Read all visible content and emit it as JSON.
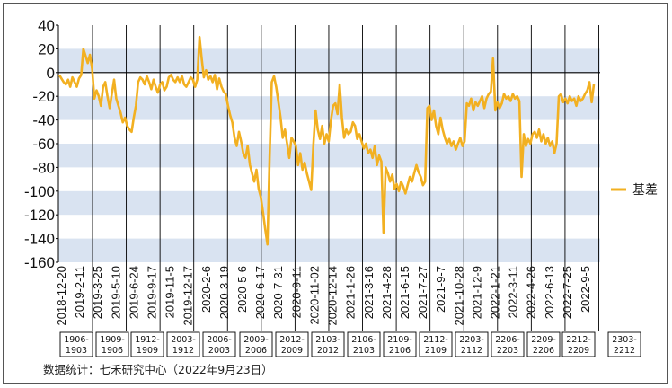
{
  "chart_data": {
    "type": "line",
    "title": "",
    "xlabel": "",
    "ylabel": "",
    "ylim": [
      -160,
      40
    ],
    "yticks": [
      40,
      20,
      0,
      -20,
      -40,
      -60,
      -80,
      -100,
      -120,
      -140,
      -160
    ],
    "grid": "horizontal bands",
    "legend_position": "right",
    "x_tick_labels": [
      "2018-12-20",
      "2019-2-11",
      "2019-3-25",
      "2019-5-10",
      "2019-6-24",
      "2019-9-17",
      "2019-11-5",
      "2019-12-17",
      "2020-2-6",
      "2020-3-19",
      "2020-5-6",
      "2020-6-17",
      "2020-7-31",
      "2020-9-11",
      "2020-11-02",
      "2020-12-14",
      "2021-1-26",
      "2021-3-16",
      "2021-4-28",
      "2021-6-15",
      "2021-7-27",
      "2021-9-7",
      "2021-10-28",
      "2021-12-9",
      "2022-1-21",
      "2022-3-11",
      "2022-4-26",
      "2022-6-13",
      "2022-7-25",
      "2022-9-5"
    ],
    "contracts": [
      {
        "line1": "1906-",
        "line2": "1903"
      },
      {
        "line1": "1909-",
        "line2": "1906"
      },
      {
        "line1": "1912-",
        "line2": "1909"
      },
      {
        "line1": "2003-",
        "line2": "1912"
      },
      {
        "line1": "2006-",
        "line2": "2003"
      },
      {
        "line1": "2009-",
        "line2": "2006"
      },
      {
        "line1": "2012-",
        "line2": "2009"
      },
      {
        "line1": "2103-",
        "line2": "2012"
      },
      {
        "line1": "2106-",
        "line2": "2103"
      },
      {
        "line1": "2109-",
        "line2": "2106"
      },
      {
        "line1": "2112-",
        "line2": "2109"
      },
      {
        "line1": "2203-",
        "line2": "2112"
      },
      {
        "line1": "2206-",
        "line2": "2203"
      },
      {
        "line1": "2209-",
        "line2": "2206"
      },
      {
        "line1": "2212-",
        "line2": "2209"
      },
      {
        "line1": "2303-",
        "line2": "2212"
      }
    ],
    "series": [
      {
        "name": "基差",
        "color": "#f2b021",
        "values": [
          -2,
          -5,
          -8,
          -10,
          -6,
          -12,
          -4,
          -8,
          -12,
          -5,
          -2,
          20,
          14,
          8,
          15,
          3,
          -22,
          -15,
          -20,
          -28,
          -12,
          -8,
          -20,
          -30,
          -18,
          -6,
          -22,
          -28,
          -34,
          -42,
          -38,
          -45,
          -48,
          -50,
          -38,
          -28,
          -8,
          -4,
          -6,
          -10,
          -3,
          -8,
          -14,
          -6,
          -12,
          -17,
          -10,
          -8,
          -15,
          -12,
          -4,
          -2,
          -6,
          -8,
          -4,
          -8,
          -3,
          -10,
          -12,
          -8,
          -4,
          -6,
          -12,
          -6,
          30,
          12,
          -4,
          2,
          -6,
          -3,
          -8,
          -2,
          -14,
          -5,
          -12,
          -16,
          -18,
          -28,
          -36,
          -42,
          -55,
          -62,
          -50,
          -58,
          -68,
          -72,
          -62,
          -78,
          -85,
          -92,
          -82,
          -98,
          -105,
          -118,
          -132,
          -145,
          -72,
          -8,
          -3,
          -12,
          -25,
          -38,
          -55,
          -48,
          -60,
          -72,
          -55,
          -58,
          -62,
          -78,
          -68,
          -82,
          -76,
          -85,
          -92,
          -99,
          -60,
          -32,
          -48,
          -56,
          -45,
          -60,
          -52,
          -58,
          -40,
          -28,
          -26,
          -35,
          -10,
          -38,
          -55,
          -48,
          -52,
          -50,
          -42,
          -45,
          -56,
          -52,
          -58,
          -64,
          -60,
          -68,
          -65,
          -72,
          -62,
          -78,
          -70,
          -75,
          -135,
          -80,
          -85,
          -92,
          -86,
          -98,
          -94,
          -100,
          -92,
          -96,
          -102,
          -95,
          -88,
          -92,
          -85,
          -78,
          -84,
          -88,
          -95,
          -92,
          -30,
          -28,
          -40,
          -32,
          -45,
          -52,
          -38,
          -48,
          -55,
          -60,
          -56,
          -62,
          -58,
          -65,
          -60,
          -55,
          -62,
          -58,
          -26,
          -28,
          -22,
          -32,
          -25,
          -28,
          -24,
          -20,
          -30,
          -22,
          -18,
          -16,
          12,
          -32,
          -25,
          -30,
          -26,
          -18,
          -22,
          -20,
          -24,
          -18,
          -22,
          -20,
          -24,
          -88,
          -52,
          -62,
          -56,
          -60,
          -52,
          -50,
          -55,
          -48,
          -58,
          -52,
          -60,
          -55,
          -62,
          -58,
          -68,
          -60,
          -20,
          -18,
          -25,
          -22,
          -26,
          -20,
          -24,
          -22,
          -28,
          -20,
          -24,
          -22,
          -18,
          -15,
          -8,
          -25,
          -10
        ]
      }
    ]
  },
  "source_text": "数据统计：七禾研究中心（2022年9月23日）"
}
